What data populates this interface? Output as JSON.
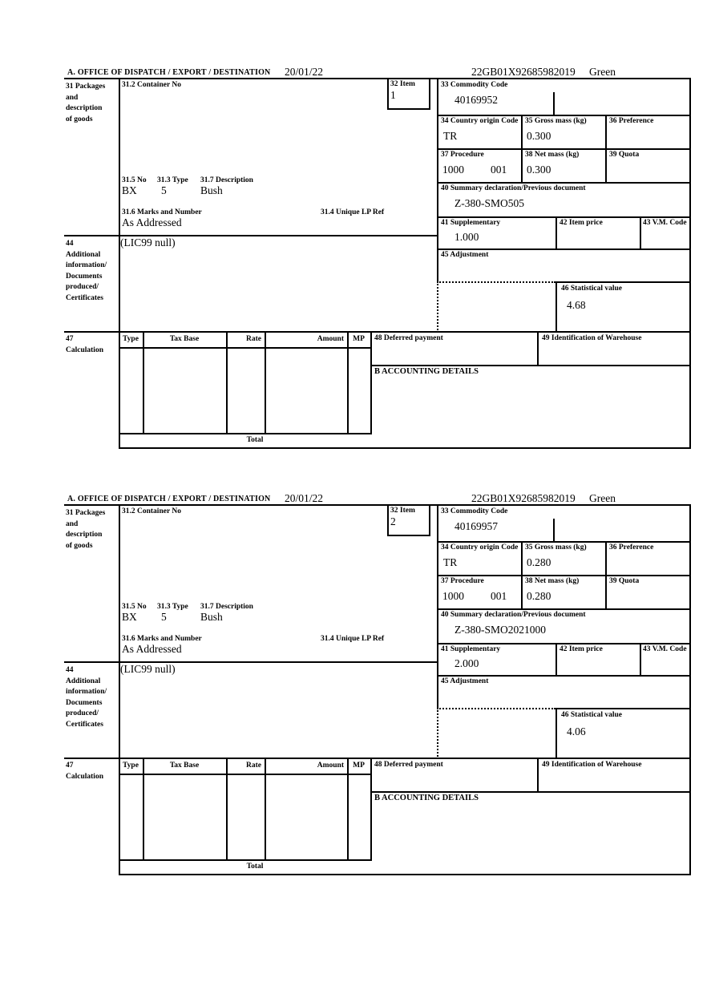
{
  "page": {
    "background": "#ffffff",
    "ink": "#000000"
  },
  "sections": [
    {
      "header": {
        "title": "A.  OFFICE OF DISPATCH / EXPORT / DESTINATION",
        "date": "20/01/22",
        "reference": "22GB01X92685982019",
        "routing": "Green"
      },
      "box31": {
        "label_lines": [
          "31 Packages",
          "and",
          "description",
          "of goods"
        ]
      },
      "box31_2": {
        "label": "31.2 Container No"
      },
      "box31_5": {
        "label": "31.5 No",
        "value": "BX"
      },
      "box31_3": {
        "label": "31.3 Type",
        "value": "5"
      },
      "box31_7": {
        "label": "31.7 Description",
        "value": "Bush"
      },
      "box31_6": {
        "label": "31.6 Marks and Number",
        "value": "As Addressed"
      },
      "box31_4": {
        "label": "31.4 Unique LP Ref"
      },
      "box32": {
        "label": "32 Item",
        "value": "1"
      },
      "box33": {
        "label": "33 Commodity Code",
        "value": "40169952"
      },
      "box34": {
        "label": "34 Country origin Code",
        "value": "TR"
      },
      "box35": {
        "label": "35 Gross mass (kg)",
        "value": "0.300"
      },
      "box36": {
        "label": "36 Preference"
      },
      "box37": {
        "label": "37 Procedure",
        "value1": "1000",
        "value2": "001"
      },
      "box38": {
        "label": "38 Net mass (kg)",
        "value": "0.300"
      },
      "box39": {
        "label": "39 Quota"
      },
      "box40": {
        "label": "40 Summary declaration/Previous document",
        "value": "Z-380-SMO505"
      },
      "box41": {
        "label": "41 Supplementary",
        "value": "1.000"
      },
      "box42": {
        "label": "42 Item price"
      },
      "box43": {
        "label": "43 V.M. Code"
      },
      "box44": {
        "label_lines": [
          "44",
          "Additional",
          "information/",
          "Documents",
          "produced/",
          "Certificates"
        ],
        "value": "(LIC99 null)"
      },
      "box45": {
        "label": "45 Adjustment"
      },
      "box46": {
        "label": "46 Statistical value",
        "value": "4.68"
      },
      "box47": {
        "label_lines": [
          "47",
          "Calculation"
        ],
        "columns": [
          "Type",
          "Tax Base",
          "Rate",
          "Amount",
          "MP"
        ],
        "total_label": "Total"
      },
      "box48": {
        "label": "48 Deferred payment"
      },
      "box49": {
        "label": "49 Identification of Warehouse"
      },
      "boxB": {
        "label": "B ACCOUNTING DETAILS"
      }
    },
    {
      "header": {
        "title": "A.  OFFICE OF DISPATCH / EXPORT / DESTINATION",
        "date": "20/01/22",
        "reference": "22GB01X92685982019",
        "routing": "Green"
      },
      "box31": {
        "label_lines": [
          "31 Packages",
          "and",
          "description",
          "of goods"
        ]
      },
      "box31_2": {
        "label": "31.2 Container No"
      },
      "box31_5": {
        "label": "31.5 No",
        "value": "BX"
      },
      "box31_3": {
        "label": "31.3 Type",
        "value": "5"
      },
      "box31_7": {
        "label": "31.7 Description",
        "value": "Bush"
      },
      "box31_6": {
        "label": "31.6 Marks and Number",
        "value": "As Addressed"
      },
      "box31_4": {
        "label": "31.4 Unique LP Ref"
      },
      "box32": {
        "label": "32 Item",
        "value": "2"
      },
      "box33": {
        "label": "33 Commodity Code",
        "value": "40169957"
      },
      "box34": {
        "label": "34 Country origin Code",
        "value": "TR"
      },
      "box35": {
        "label": "35 Gross mass (kg)",
        "value": "0.280"
      },
      "box36": {
        "label": "36 Preference"
      },
      "box37": {
        "label": "37 Procedure",
        "value1": "1000",
        "value2": "001"
      },
      "box38": {
        "label": "38 Net mass (kg)",
        "value": "0.280"
      },
      "box39": {
        "label": "39 Quota"
      },
      "box40": {
        "label": "40 Summary declaration/Previous document",
        "value": "Z-380-SMO2021000"
      },
      "box41": {
        "label": "41 Supplementary",
        "value": "2.000"
      },
      "box42": {
        "label": "42 Item price"
      },
      "box43": {
        "label": "43 V.M. Code"
      },
      "box44": {
        "label_lines": [
          "44",
          "Additional",
          "information/",
          "Documents",
          "produced/",
          "Certificates"
        ],
        "value": "(LIC99 null)"
      },
      "box45": {
        "label": "45 Adjustment"
      },
      "box46": {
        "label": "46 Statistical value",
        "value": "4.06"
      },
      "box47": {
        "label_lines": [
          "47",
          "Calculation"
        ],
        "columns": [
          "Type",
          "Tax Base",
          "Rate",
          "Amount",
          "MP"
        ],
        "total_label": "Total"
      },
      "box48": {
        "label": "48 Deferred payment"
      },
      "box49": {
        "label": "49 Identification of Warehouse"
      },
      "boxB": {
        "label": "B ACCOUNTING DETAILS"
      }
    }
  ]
}
